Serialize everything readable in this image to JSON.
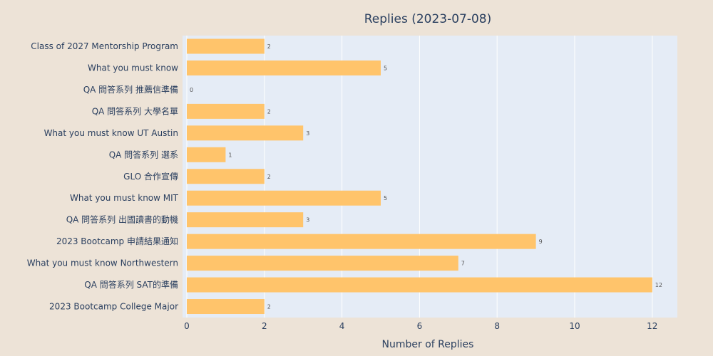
{
  "chart_data": {
    "type": "bar",
    "orientation": "horizontal",
    "title": "Replies (2023-07-08)",
    "xlabel": "Number of Replies",
    "ylabel": "",
    "xlim": [
      0,
      12.6
    ],
    "xticks": [
      0,
      2,
      4,
      6,
      8,
      10,
      12
    ],
    "grid": true,
    "categories": [
      "Class of 2027 Mentorship Program",
      "What you must know",
      "QA 問答系列 推薦信準備",
      "QA 問答系列 大學名單",
      "What you must know UT Austin",
      "QA 問答系列 選系",
      "GLO 合作宣傳",
      "What you must know MIT",
      "QA 問答系列 出國讀書的動機",
      "2023 Bootcamp 申請結果通知",
      "What you must know Northwestern",
      "QA 問答系列 SAT的準備",
      "2023 Bootcamp College Major"
    ],
    "values": [
      2,
      5,
      0,
      2,
      3,
      1,
      2,
      5,
      3,
      9,
      7,
      12,
      2
    ]
  },
  "colors": {
    "background": "#ede3d7",
    "plot_background": "#e5ecf6",
    "bar": "#ffc46b",
    "grid": "#ffffff",
    "text": "#2a3f5f"
  }
}
